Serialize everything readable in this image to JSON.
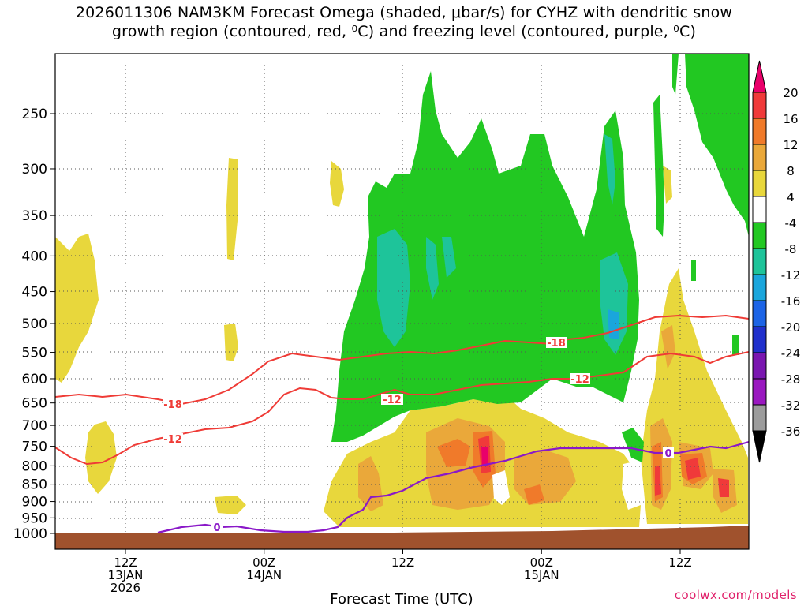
{
  "title": {
    "line1": "2026011306 NAM3KM Forecast Omega (shaded, μbar/s) for CYHZ with dendritic snow",
    "line2": "growth region (contoured, red, ⁰C) and freezing level (contoured, purple, ⁰C)"
  },
  "credit": "coolwx.com/models",
  "colors": {
    "ground": "#a0522d",
    "dgz_contour": "#ef3b36",
    "freezing_contour": "#8a18c8",
    "grid": "#555555"
  },
  "chart_data": {
    "type": "heatmap",
    "xlabel": "Forecast Time (UTC)",
    "ylabel": "",
    "y_scale": "log-pressure (inverted)",
    "ylim_hPa": [
      1000,
      200
    ],
    "y_ticks": [
      250,
      300,
      350,
      400,
      450,
      500,
      550,
      600,
      650,
      700,
      750,
      800,
      850,
      900,
      950,
      1000
    ],
    "x_ticks": [
      {
        "time": "2026-01-13T12",
        "label1": "12Z",
        "label2": "13JAN",
        "label3": "2026"
      },
      {
        "time": "2026-01-14T00",
        "label1": "00Z",
        "label2": "14JAN",
        "label3": ""
      },
      {
        "time": "2026-01-14T12",
        "label1": "12Z",
        "label2": "",
        "label3": ""
      },
      {
        "time": "2026-01-15T00",
        "label1": "00Z",
        "label2": "15JAN",
        "label3": ""
      },
      {
        "time": "2026-01-15T12",
        "label1": "12Z",
        "label2": "",
        "label3": ""
      }
    ],
    "xlim": [
      "2026-01-13T06",
      "2026-01-15T18"
    ],
    "grid": true,
    "colorbar": {
      "label": "Omega (μbar/s)",
      "levels": [
        20,
        16,
        12,
        8,
        4,
        -4,
        -8,
        -12,
        -16,
        -20,
        -24,
        -28,
        -32,
        -36
      ],
      "colors": [
        "#e9006a",
        "#f03a3a",
        "#f07a2a",
        "#eaa83a",
        "#e8d73c",
        "#ffffff",
        "#22c822",
        "#1ec49a",
        "#1aa6dc",
        "#1c64e6",
        "#2030cc",
        "#7a16b0",
        "#9a18c0",
        "#9c9c9c",
        "#000000"
      ]
    },
    "contours": [
      {
        "name": "dendritic growth region",
        "color": "#ef3b36",
        "labels": [
          "-18",
          "-12",
          "-12",
          "-18",
          "-12"
        ]
      },
      {
        "name": "freezing level",
        "color": "#8a18c8",
        "labels": [
          "0",
          "0"
        ]
      }
    ]
  }
}
